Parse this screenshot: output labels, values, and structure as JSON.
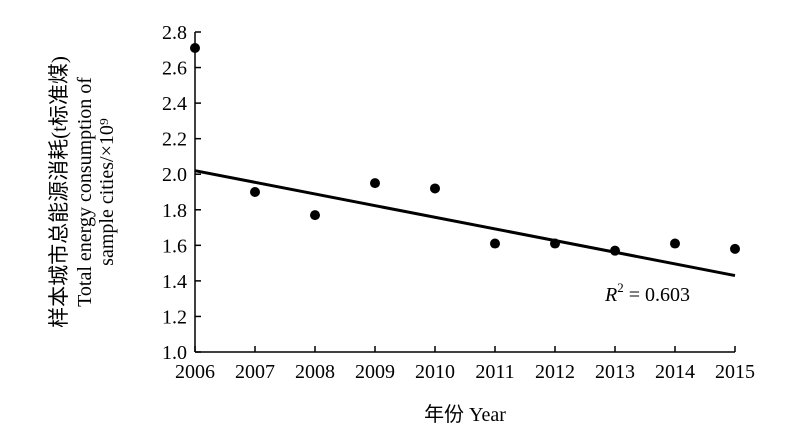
{
  "chart_data": {
    "type": "scatter",
    "xlabel": "年份 Year",
    "ylabel_cn": "样本城市总能源消耗(t标准煤)",
    "ylabel_en_line1": "Total energy consumption of",
    "ylabel_en_line2": "sample cities/×10⁹",
    "x_ticks": [
      "2006",
      "2007",
      "2008",
      "2009",
      "2010",
      "2011",
      "2012",
      "2013",
      "2014",
      "2015"
    ],
    "y_ticks": [
      "1.0",
      "1.2",
      "1.4",
      "1.6",
      "1.8",
      "2.0",
      "2.2",
      "2.4",
      "2.6",
      "2.8"
    ],
    "xlim": [
      2006,
      2015
    ],
    "ylim": [
      1.0,
      2.8
    ],
    "points": [
      {
        "x": 2006,
        "y": 2.71
      },
      {
        "x": 2007,
        "y": 1.9
      },
      {
        "x": 2008,
        "y": 1.77
      },
      {
        "x": 2009,
        "y": 1.95
      },
      {
        "x": 2010,
        "y": 1.92
      },
      {
        "x": 2011,
        "y": 1.61
      },
      {
        "x": 2012,
        "y": 1.61
      },
      {
        "x": 2013,
        "y": 1.57
      },
      {
        "x": 2014,
        "y": 1.61
      },
      {
        "x": 2015,
        "y": 1.58
      }
    ],
    "trendline": {
      "x": [
        2006,
        2015
      ],
      "y": [
        2.02,
        1.43
      ]
    },
    "annotation": {
      "r_label": "R",
      "exp": "2",
      "value_text": " = 0.603"
    },
    "grid": false,
    "colors": {
      "points": "#000000",
      "line": "#000000"
    }
  }
}
